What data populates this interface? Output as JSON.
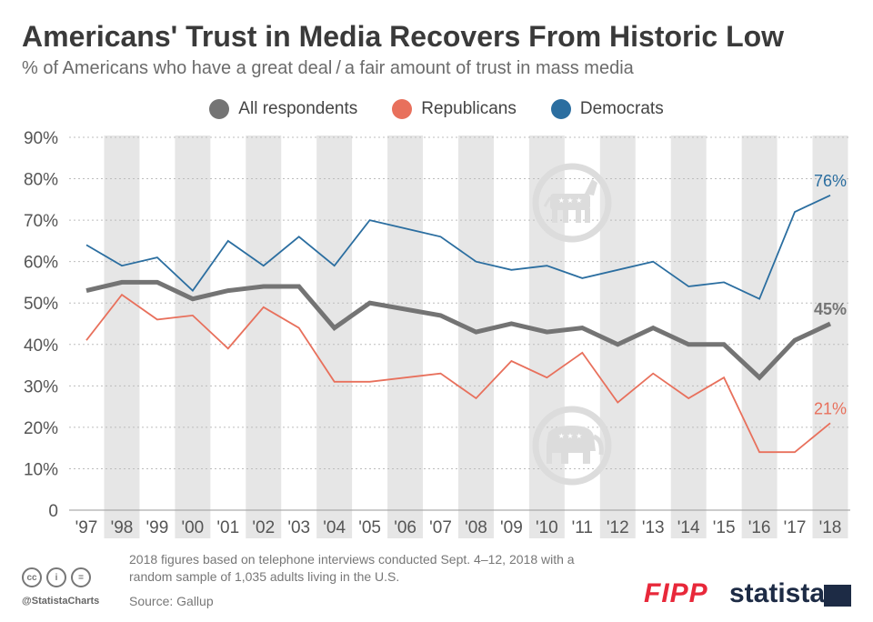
{
  "title": "Americans' Trust in Media Recovers From Historic Low",
  "subtitle": "% of Americans who have a great deal / a fair amount of trust in mass media",
  "legend": [
    {
      "label": "All respondents",
      "color": "#747474"
    },
    {
      "label": "Republicans",
      "color": "#e8705c"
    },
    {
      "label": "Democrats",
      "color": "#2b6ea0"
    }
  ],
  "footer": {
    "note": "2018 figures based on telephone interviews conducted Sept. 4–12, 2018 with a random sample of 1,035 adults living in the U.S.",
    "source": "Source: Gallup",
    "handle": "@StatistaCharts",
    "cc_icons": [
      "cc",
      "i",
      "="
    ],
    "fipp": "FIPP",
    "statista": "statista"
  },
  "icons": {
    "democrat": "donkey-icon",
    "republican": "elephant-icon"
  },
  "chart_data": {
    "type": "line",
    "categories": [
      "'97",
      "'98",
      "'99",
      "'00",
      "'01",
      "'02",
      "'03",
      "'04",
      "'05",
      "'06",
      "'07",
      "'08",
      "'09",
      "'10",
      "'11",
      "'12",
      "'13",
      "'14",
      "'15",
      "'16",
      "'17",
      "'18"
    ],
    "yticks": [
      "0",
      "10%",
      "20%",
      "30%",
      "40%",
      "50%",
      "60%",
      "70%",
      "80%",
      "90%"
    ],
    "ylim": [
      0,
      90
    ],
    "grid": true,
    "alternating_column_shading": true,
    "series": [
      {
        "name": "All respondents",
        "color": "#747474",
        "values": [
          53,
          55,
          55,
          51,
          53,
          54,
          54,
          44,
          50,
          null,
          47,
          43,
          45,
          43,
          44,
          40,
          44,
          40,
          40,
          32,
          41,
          45
        ],
        "end_label": "45%"
      },
      {
        "name": "Republicans",
        "color": "#e8705c",
        "values": [
          41,
          52,
          46,
          47,
          39,
          49,
          44,
          31,
          31,
          null,
          33,
          27,
          36,
          32,
          38,
          26,
          33,
          27,
          32,
          14,
          14,
          21
        ],
        "end_label": "21%"
      },
      {
        "name": "Democrats",
        "color": "#2b6ea0",
        "values": [
          64,
          59,
          61,
          53,
          65,
          59,
          66,
          59,
          70,
          null,
          66,
          60,
          58,
          59,
          56,
          null,
          60,
          54,
          55,
          51,
          72,
          76
        ],
        "end_label": "76%"
      }
    ]
  }
}
